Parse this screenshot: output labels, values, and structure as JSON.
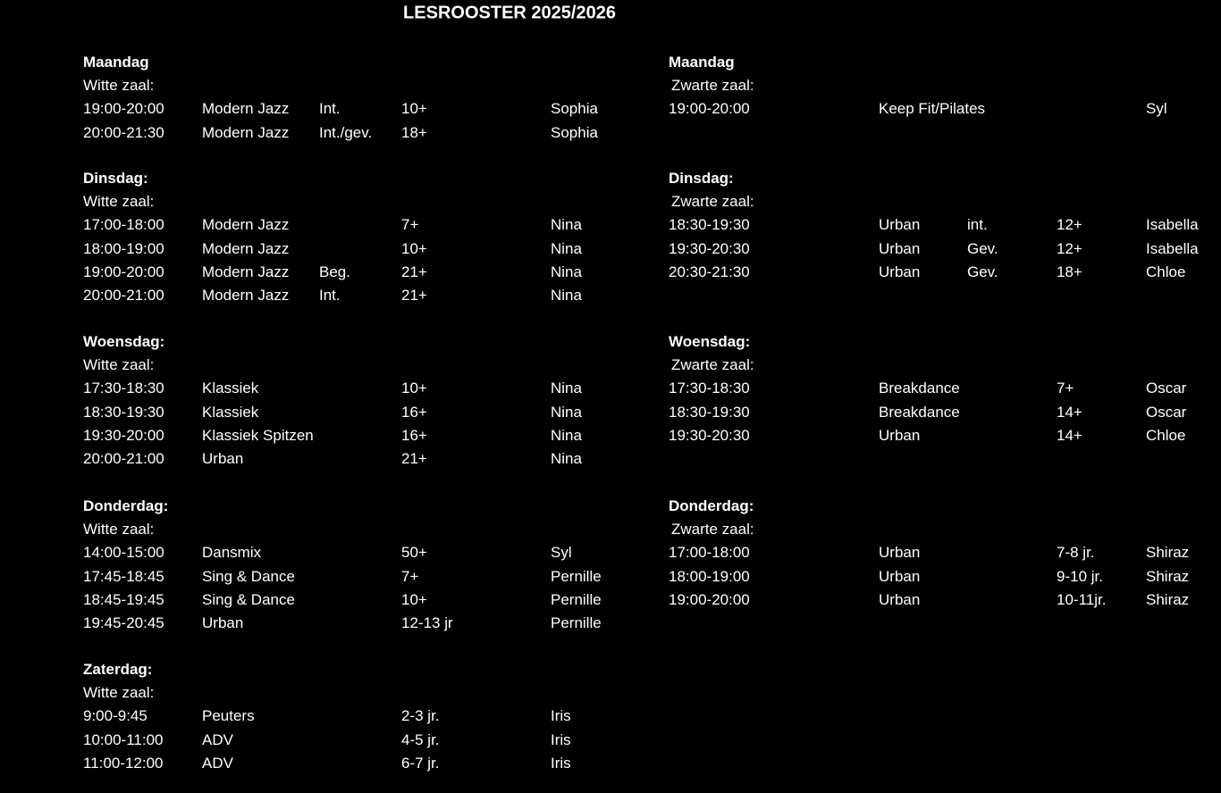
{
  "title": "LESROOSTER 2025/2026",
  "left": [
    {
      "day": "Maandag",
      "room": "Witte zaal:",
      "rows": [
        {
          "time": "19:00-20:00",
          "class": "Modern Jazz",
          "level": "Int.",
          "age": "10+",
          "teacher": "Sophia"
        },
        {
          "time": "20:00-21:30",
          "class": "Modern Jazz",
          "level": "Int./gev.",
          "age": "18+",
          "teacher": "Sophia"
        }
      ]
    },
    {
      "day": "Dinsdag:",
      "room": "Witte zaal:",
      "rows": [
        {
          "time": "17:00-18:00",
          "class": "Modern Jazz",
          "age": "7+",
          "teacher": "Nina"
        },
        {
          "time": "18:00-19:00",
          "class": "Modern Jazz",
          "age": "10+",
          "teacher": "Nina"
        },
        {
          "time": "19:00-20:00",
          "class": "Modern Jazz",
          "level": "Beg.",
          "age": "21+",
          "teacher": "Nina"
        },
        {
          "time": "20:00-21:00",
          "class": "Modern Jazz",
          "level": "Int.",
          "age": "21+",
          "teacher": "Nina"
        }
      ]
    },
    {
      "day": "Woensdag:",
      "room": "Witte zaal:",
      "rows": [
        {
          "time": "17:30-18:30",
          "class": "Klassiek",
          "age": "10+",
          "teacher": "Nina"
        },
        {
          "time": "18:30-19:30",
          "class": "Klassiek",
          "age": "16+",
          "teacher": "Nina"
        },
        {
          "time": "19:30-20:00",
          "class": "Klassiek Spitzen",
          "age": "16+",
          "teacher": "Nina"
        },
        {
          "time": "20:00-21:00",
          "class": "Urban",
          "age": "21+",
          "teacher": "Nina"
        }
      ]
    },
    {
      "day": "Donderdag:",
      "room": "Witte zaal:",
      "rows": [
        {
          "time": "14:00-15:00",
          "class": "Dansmix",
          "age": "50+",
          "teacher": "Syl"
        },
        {
          "time": "17:45-18:45",
          "class": "Sing & Dance",
          "age": "7+",
          "teacher": "Pernille"
        },
        {
          "time": "18:45-19:45",
          "class": "Sing & Dance",
          "age": "10+",
          "teacher": "Pernille"
        },
        {
          "time": "19:45-20:45",
          "class": "Urban",
          "age": "12-13 jr",
          "teacher": "Pernille"
        }
      ]
    },
    {
      "day": "Zaterdag:",
      "room": "Witte zaal:",
      "rows": [
        {
          "time": "9:00-9:45",
          "class": "Peuters",
          "age": "2-3 jr.",
          "teacher": "Iris"
        },
        {
          "time": "10:00-11:00",
          "class": "ADV",
          "age": "4-5 jr.",
          "teacher": "Iris"
        },
        {
          "time": "11:00-12:00",
          "class": "ADV",
          "age": "6-7 jr.",
          "teacher": "Iris"
        }
      ]
    }
  ],
  "right": [
    {
      "day": "Maandag",
      "room": "Zwarte zaal:",
      "rows": [
        {
          "time": "19:00-20:00",
          "class": "Keep Fit/Pilates",
          "teacher": "Syl"
        }
      ]
    },
    {
      "day": "Dinsdag:",
      "room": "Zwarte zaal:",
      "rows": [
        {
          "time": "18:30-19:30",
          "class": "Urban",
          "level": "int.",
          "age": "12+",
          "teacher": "Isabella"
        },
        {
          "time": "19:30-20:30",
          "class": "Urban",
          "level": "Gev.",
          "age": "12+",
          "teacher": "Isabella"
        },
        {
          "time": "20:30-21:30",
          "class": "Urban",
          "level": "Gev.",
          "age": "18+",
          "teacher": "Chloe"
        }
      ]
    },
    {
      "day": "Woensdag:",
      "room": "Zwarte zaal:",
      "rows": [
        {
          "time": "17:30-18:30",
          "class": "Breakdance",
          "age": "7+",
          "teacher": "Oscar"
        },
        {
          "time": "18:30-19:30",
          "class": "Breakdance",
          "age": "14+",
          "teacher": "Oscar"
        },
        {
          "time": "19:30-20:30",
          "class": "Urban",
          "age": "14+",
          "teacher": "Chloe"
        }
      ]
    },
    {
      "day": "Donderdag:",
      "room": "Zwarte zaal:",
      "rows": [
        {
          "time": "17:00-18:00",
          "class": "Urban",
          "age": "7-8 jr.",
          "teacher": "Shiraz"
        },
        {
          "time": "18:00-19:00",
          "class": "Urban",
          "age": "9-10 jr.",
          "teacher": "Shiraz"
        },
        {
          "time": "19:00-20:00",
          "class": "Urban",
          "age": "10-11jr.",
          "teacher": "Shiraz"
        }
      ]
    }
  ]
}
